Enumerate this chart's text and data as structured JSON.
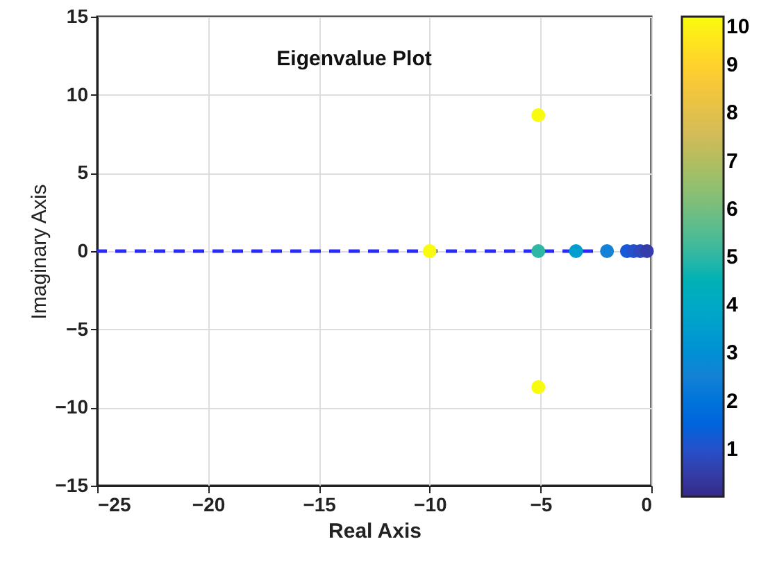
{
  "chart_data": {
    "type": "scatter",
    "title": "Eigenvalue Plot",
    "xlabel": "Real Axis",
    "ylabel": "Imaginary Axis",
    "x": [
      -10,
      -5.1,
      -5.1,
      -5.1,
      -3.4,
      -2,
      -1.1,
      -0.8,
      -0.5,
      -0.2
    ],
    "values": [
      0,
      8.7,
      -8.7,
      0,
      0,
      0,
      0,
      0,
      0,
      0
    ],
    "cvalues": [
      10,
      10,
      10,
      5,
      3.5,
      2.5,
      1.2,
      1,
      0.8,
      0.5
    ],
    "clim": [
      0,
      10
    ],
    "cticks": [
      1,
      2,
      3,
      4,
      5,
      6,
      7,
      8,
      9,
      10
    ],
    "xlim": [
      -25,
      0
    ],
    "xticks": [
      -25,
      -20,
      -15,
      -10,
      -5,
      0
    ],
    "ylim": [
      -15,
      15
    ],
    "yticks": [
      -15,
      -10,
      -5,
      0,
      5,
      10,
      15
    ],
    "ref_lines": [
      {
        "axis": "y",
        "value": 0,
        "color": "#2929ff",
        "line_style": "dashed"
      }
    ],
    "grid": true,
    "marker": "circle"
  }
}
